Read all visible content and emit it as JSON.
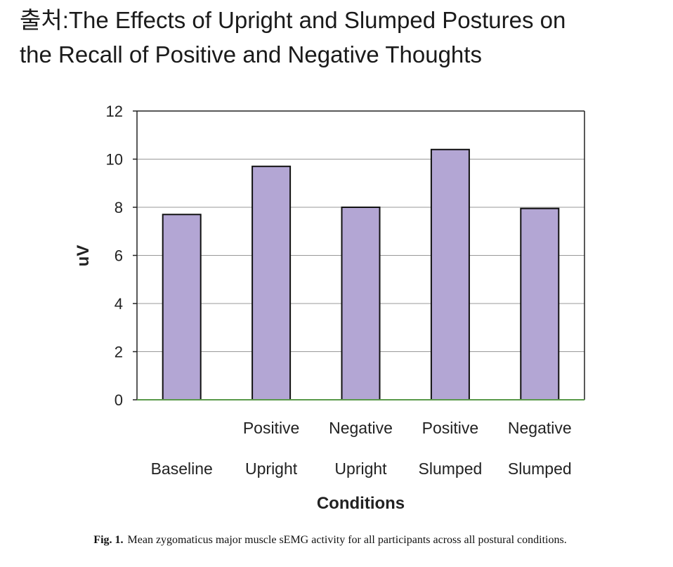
{
  "heading": {
    "line1": "출처:The Effects of Upright and Slumped Postures on",
    "line2": "the Recall of Positive and Negative Thoughts"
  },
  "caption": {
    "label": "Fig. 1.",
    "text": "Mean zygomaticus major muscle sEMG activity for all participants across all postural conditions."
  },
  "colors": {
    "bar_fill": "#b3a6d4",
    "bar_stroke": "#111111",
    "grid": "#999999",
    "axis": "#222222",
    "baseline": "#5a9a4a"
  },
  "chart_data": {
    "type": "bar",
    "categories": [
      [
        "",
        "Baseline"
      ],
      [
        "Positive",
        "Upright"
      ],
      [
        "Negative",
        "Upright"
      ],
      [
        "Positive",
        "Slumped"
      ],
      [
        "Negative",
        "Slumped"
      ]
    ],
    "values": [
      7.7,
      9.7,
      8.0,
      10.4,
      7.95
    ],
    "xlabel": "Conditions",
    "ylabel": "uV",
    "ylim": [
      0,
      12
    ],
    "yticks": [
      0,
      2,
      4,
      6,
      8,
      10,
      12
    ],
    "grid": true,
    "legend": "none"
  }
}
